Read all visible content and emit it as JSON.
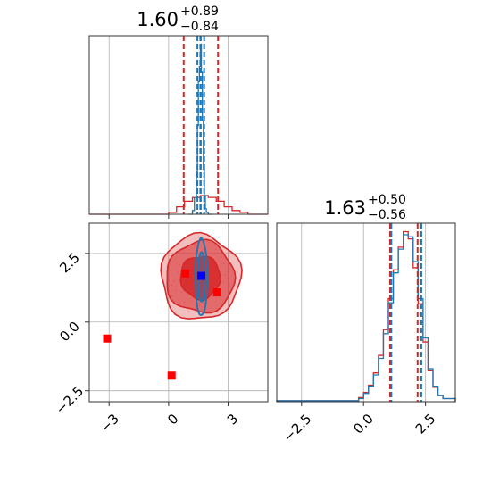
{
  "chart_data": {
    "type": "corner",
    "colors": {
      "red": "#d62728",
      "blue": "#1f77b4",
      "marker_red": "#ff0000",
      "marker_blue": "#0000ff",
      "grid": "#b0b0b0"
    },
    "panels": [
      {
        "id": "hist_param1",
        "type": "histogram",
        "title": {
          "value": "1.60",
          "upper": "+0.89",
          "lower": "−0.84"
        },
        "xlim": [
          -4.0,
          5.0
        ],
        "x_ticks": [
          -3,
          0,
          3
        ],
        "grid": true,
        "quantile_lines": {
          "red": [
            0.76,
            1.6,
            2.49
          ],
          "blue": [
            1.45,
            1.62,
            1.79
          ]
        },
        "series": [
          {
            "name": "red",
            "color": "#d62728",
            "bin_edges": [
              -4.0,
              0.0,
              0.4,
              0.8,
              1.2,
              1.6,
              2.0,
              2.4,
              2.8,
              3.2,
              3.6,
              4.0,
              5.0
            ],
            "counts": [
              0,
              2,
              8,
              14,
              18,
              20,
              18,
              14,
              8,
              4,
              2,
              0
            ]
          },
          {
            "name": "blue",
            "color": "#1f77b4",
            "bin_edges": [
              1.0,
              1.2,
              1.3,
              1.4,
              1.45,
              1.5,
              1.55,
              1.6,
              1.65,
              1.7,
              1.75,
              1.8,
              1.85,
              1.9,
              2.0,
              2.2
            ],
            "counts": [
              0,
              4,
              18,
              45,
              95,
              142,
              158,
              182,
              152,
              100,
              48,
              20,
              6,
              2,
              0
            ]
          }
        ]
      },
      {
        "id": "hist_param2",
        "type": "histogram",
        "title": {
          "value": "1.63",
          "upper": "+0.50",
          "lower": "−0.56"
        },
        "xlim": [
          -3.5,
          3.7
        ],
        "x_ticks": [
          -2.5,
          0.0,
          2.5
        ],
        "x_tick_labels": [
          "−2.5",
          "0.0",
          "2.5"
        ],
        "grid": true,
        "quantile_lines": {
          "red": [
            1.07,
            2.18
          ],
          "blue": [
            1.12,
            2.33
          ]
        },
        "series": [
          {
            "name": "red",
            "color": "#d62728",
            "bin_edges": [
              -3.5,
              -0.2,
              0.0,
              0.2,
              0.4,
              0.6,
              0.8,
              1.0,
              1.2,
              1.4,
              1.6,
              1.8,
              2.0,
              2.2,
              2.4,
              2.6,
              2.8,
              3.0,
              3.2,
              3.7
            ],
            "counts": [
              1,
              4,
              9,
              16,
              28,
              45,
              70,
              100,
              128,
              150,
              165,
              158,
              130,
              95,
              58,
              30,
              14,
              6,
              3
            ]
          },
          {
            "name": "blue",
            "color": "#1f77b4",
            "bin_edges": [
              -3.5,
              -0.2,
              0.0,
              0.2,
              0.4,
              0.6,
              0.8,
              1.0,
              1.2,
              1.4,
              1.6,
              1.8,
              2.0,
              2.2,
              2.4,
              2.6,
              2.8,
              3.0,
              3.2,
              3.7
            ],
            "counts": [
              1,
              3,
              8,
              15,
              26,
              42,
              66,
              96,
              125,
              148,
              162,
              160,
              136,
              100,
              62,
              32,
              15,
              6,
              3
            ]
          }
        ]
      },
      {
        "id": "joint",
        "type": "scatter_contour",
        "xlim": [
          -4.0,
          5.0
        ],
        "ylim": [
          -2.9,
          3.6
        ],
        "x_ticks": [
          -3,
          0,
          3
        ],
        "y_ticks": [
          -2.5,
          0.0,
          2.5
        ],
        "y_tick_labels": [
          "−2.5",
          "0.0",
          "2.5"
        ],
        "x_tick_labels": [
          "−3",
          "0",
          "3"
        ],
        "grid": true,
        "red_contours": [
          {
            "cx": 1.6,
            "cy": 1.63,
            "rx": 2.0,
            "ry": 1.55
          },
          {
            "cx": 1.6,
            "cy": 1.63,
            "rx": 1.72,
            "ry": 1.3
          },
          {
            "cx": 1.6,
            "cy": 1.63,
            "rx": 1.0,
            "ry": 0.78
          }
        ],
        "blue_contours": [
          {
            "cx": 1.65,
            "cy": 1.63,
            "rx": 0.3,
            "ry": 1.4
          },
          {
            "cx": 1.65,
            "cy": 1.63,
            "rx": 0.18,
            "ry": 0.9
          }
        ],
        "markers_red": [
          {
            "x": -3.1,
            "y": -0.6
          },
          {
            "x": 0.15,
            "y": -1.95
          },
          {
            "x": 0.85,
            "y": 1.77
          },
          {
            "x": 2.45,
            "y": 1.08
          }
        ],
        "markers_blue": [
          {
            "x": 1.65,
            "y": 1.68
          }
        ]
      }
    ]
  }
}
